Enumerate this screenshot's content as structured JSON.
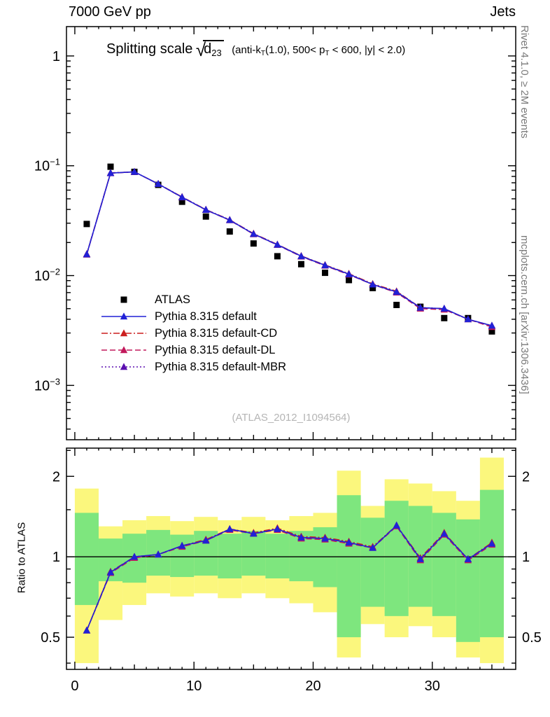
{
  "header": {
    "left": "7000 GeV pp",
    "right": "Jets"
  },
  "title": {
    "main": "Splitting scale",
    "sqrt": "√",
    "dvar": "d",
    "dsub": "23",
    "det1": "(anti-k",
    "det1sub": "T",
    "det2": "(1.0), 500< p",
    "det2sub": "T",
    "det3": " < 600, |y| < 2.0)"
  },
  "side_notes": {
    "top_right": "Rivet 4.1.0, ≥ 2M events",
    "bottom_right": "mcplots.cern.ch [arXiv:1306.3436]"
  },
  "watermark": "(ATLAS_2012_I1094564)",
  "ratio_ylabel": "Ratio to ATLAS",
  "colors": {
    "axis": "#000000",
    "band_outer": "#fbf77d",
    "band_inner": "#7ee67e",
    "watermark": "#b5b5b5",
    "side_note": "#7a7a7a",
    "reference_line": "#000000"
  },
  "chart_data": {
    "type": "line",
    "title": "Splitting scale sqrt(d23) (anti-kT(1.0), 500< pT < 600, |y| < 2.0)",
    "x_range": [
      -0.7,
      37
    ],
    "x_ticks": [
      0,
      10,
      20,
      30
    ],
    "x": [
      1,
      3,
      5,
      7,
      9,
      11,
      13,
      15,
      17,
      19,
      21,
      23,
      25,
      27,
      29,
      31,
      33,
      35
    ],
    "main_panel": {
      "y_scale": "log",
      "y_range": [
        0.00032,
        1.85
      ],
      "y_ticks": [
        1,
        0.1,
        0.01,
        0.001
      ],
      "series": [
        {
          "id": "atlas",
          "name": "ATLAS",
          "line": "none",
          "marker": "square",
          "color": "#000000",
          "values": [
            0.0295,
            0.098,
            0.088,
            0.067,
            0.047,
            0.0345,
            0.0252,
            0.0196,
            0.015,
            0.0127,
            0.0106,
            0.0091,
            0.0077,
            0.0054,
            0.0052,
            0.0041,
            0.0041,
            0.0031
          ]
        },
        {
          "id": "pythia-default",
          "name": "Pythia 8.315 default",
          "line": "solid",
          "marker": "triangle",
          "color": "#2121d6",
          "values": [
            0.0156,
            0.0858,
            0.088,
            0.0683,
            0.0517,
            0.0397,
            0.032,
            0.0239,
            0.0191,
            0.015,
            0.0124,
            0.0103,
            0.0083,
            0.0071,
            0.0051,
            0.005,
            0.004,
            0.0035
          ]
        },
        {
          "id": "pythia-default-cd",
          "name": "Pythia 8.315 default-CD",
          "line": "dashdot",
          "marker": "triangle",
          "color": "#cc1f1f",
          "values": [
            0.0157,
            0.0862,
            0.0878,
            0.0685,
            0.052,
            0.0399,
            0.0322,
            0.0241,
            0.0192,
            0.0151,
            0.0125,
            0.0104,
            0.0084,
            0.0072,
            0.0051,
            0.005,
            0.004,
            0.0035
          ]
        },
        {
          "id": "pythia-default-dl",
          "name": "Pythia 8.315 default-DL",
          "line": "dash",
          "marker": "triangle",
          "color": "#c2185b",
          "values": [
            0.0155,
            0.0855,
            0.0881,
            0.0682,
            0.0515,
            0.0396,
            0.0319,
            0.0238,
            0.019,
            0.0149,
            0.0123,
            0.0102,
            0.0083,
            0.007,
            0.005,
            0.0049,
            0.004,
            0.0034
          ]
        },
        {
          "id": "pythia-default-mbr",
          "name": "Pythia 8.315 default-MBR",
          "line": "dot",
          "marker": "triangle",
          "color": "#5b0fb0",
          "values": [
            0.0156,
            0.086,
            0.0879,
            0.0684,
            0.0518,
            0.0398,
            0.0321,
            0.024,
            0.0191,
            0.015,
            0.0124,
            0.0103,
            0.0083,
            0.0071,
            0.0051,
            0.005,
            0.004,
            0.0035
          ]
        }
      ]
    },
    "ratio_panel": {
      "y_scale": "log",
      "y_range": [
        0.379,
        2.55
      ],
      "y_ticks": [
        0.5,
        1,
        2
      ],
      "reference_line": 1,
      "bands": [
        {
          "x": [
            0,
            2
          ],
          "outer": [
            0.4,
            1.8
          ],
          "inner": [
            0.66,
            1.46
          ]
        },
        {
          "x": [
            2,
            4
          ],
          "outer": [
            0.58,
            1.3
          ],
          "inner": [
            0.81,
            1.17
          ]
        },
        {
          "x": [
            4,
            6
          ],
          "outer": [
            0.66,
            1.37
          ],
          "inner": [
            0.8,
            1.22
          ]
        },
        {
          "x": [
            6,
            8
          ],
          "outer": [
            0.73,
            1.42
          ],
          "inner": [
            0.85,
            1.26
          ]
        },
        {
          "x": [
            8,
            10
          ],
          "outer": [
            0.71,
            1.36
          ],
          "inner": [
            0.84,
            1.21
          ]
        },
        {
          "x": [
            10,
            12
          ],
          "outer": [
            0.73,
            1.41
          ],
          "inner": [
            0.85,
            1.25
          ]
        },
        {
          "x": [
            12,
            14
          ],
          "outer": [
            0.7,
            1.37
          ],
          "inner": [
            0.83,
            1.22
          ]
        },
        {
          "x": [
            14,
            16
          ],
          "outer": [
            0.73,
            1.41
          ],
          "inner": [
            0.85,
            1.25
          ]
        },
        {
          "x": [
            16,
            18
          ],
          "outer": [
            0.7,
            1.37
          ],
          "inner": [
            0.83,
            1.22
          ]
        },
        {
          "x": [
            18,
            20
          ],
          "outer": [
            0.67,
            1.42
          ],
          "inner": [
            0.81,
            1.25
          ]
        },
        {
          "x": [
            20,
            22
          ],
          "outer": [
            0.62,
            1.46
          ],
          "inner": [
            0.77,
            1.29
          ]
        },
        {
          "x": [
            22,
            24
          ],
          "outer": [
            0.42,
            2.1
          ],
          "inner": [
            0.5,
            1.7
          ]
        },
        {
          "x": [
            24,
            26
          ],
          "outer": [
            0.56,
            1.55
          ],
          "inner": [
            0.65,
            1.4
          ]
        },
        {
          "x": [
            26,
            28
          ],
          "outer": [
            0.5,
            1.95
          ],
          "inner": [
            0.6,
            1.62
          ]
        },
        {
          "x": [
            28,
            30
          ],
          "outer": [
            0.55,
            1.88
          ],
          "inner": [
            0.65,
            1.55
          ]
        },
        {
          "x": [
            30,
            32
          ],
          "outer": [
            0.5,
            1.76
          ],
          "inner": [
            0.6,
            1.46
          ]
        },
        {
          "x": [
            32,
            34
          ],
          "outer": [
            0.42,
            1.62
          ],
          "inner": [
            0.48,
            1.38
          ]
        },
        {
          "x": [
            34,
            36
          ],
          "outer": [
            0.4,
            2.35
          ],
          "inner": [
            0.5,
            1.78
          ]
        }
      ],
      "series": [
        {
          "id": "pythia-default",
          "name": "Pythia 8.315 default",
          "line": "solid",
          "marker": "triangle",
          "color": "#2121d6",
          "values": [
            0.53,
            0.875,
            1.0,
            1.02,
            1.1,
            1.15,
            1.27,
            1.22,
            1.27,
            1.18,
            1.17,
            1.13,
            1.08,
            1.31,
            0.98,
            1.22,
            0.98,
            1.12
          ]
        },
        {
          "id": "pythia-default-cd",
          "name": "Pythia 8.315 default-CD",
          "line": "dashdot",
          "marker": "triangle",
          "color": "#cc1f1f",
          "values": [
            0.53,
            0.88,
            1.0,
            1.02,
            1.1,
            1.16,
            1.27,
            1.23,
            1.28,
            1.19,
            1.18,
            1.14,
            1.09,
            1.31,
            0.99,
            1.23,
            0.98,
            1.13
          ]
        },
        {
          "id": "pythia-default-dl",
          "name": "Pythia 8.315 default-DL",
          "line": "dash",
          "marker": "triangle",
          "color": "#c2185b",
          "values": [
            0.53,
            0.87,
            0.99,
            1.02,
            1.09,
            1.15,
            1.26,
            1.22,
            1.26,
            1.17,
            1.16,
            1.12,
            1.08,
            1.3,
            0.97,
            1.21,
            0.97,
            1.11
          ]
        },
        {
          "id": "pythia-default-mbr",
          "name": "Pythia 8.315 default-MBR",
          "line": "dot",
          "marker": "triangle",
          "color": "#5b0fb0",
          "values": [
            0.53,
            0.875,
            1.0,
            1.02,
            1.1,
            1.15,
            1.27,
            1.22,
            1.27,
            1.18,
            1.17,
            1.13,
            1.08,
            1.31,
            0.98,
            1.22,
            0.98,
            1.12
          ]
        }
      ]
    }
  }
}
